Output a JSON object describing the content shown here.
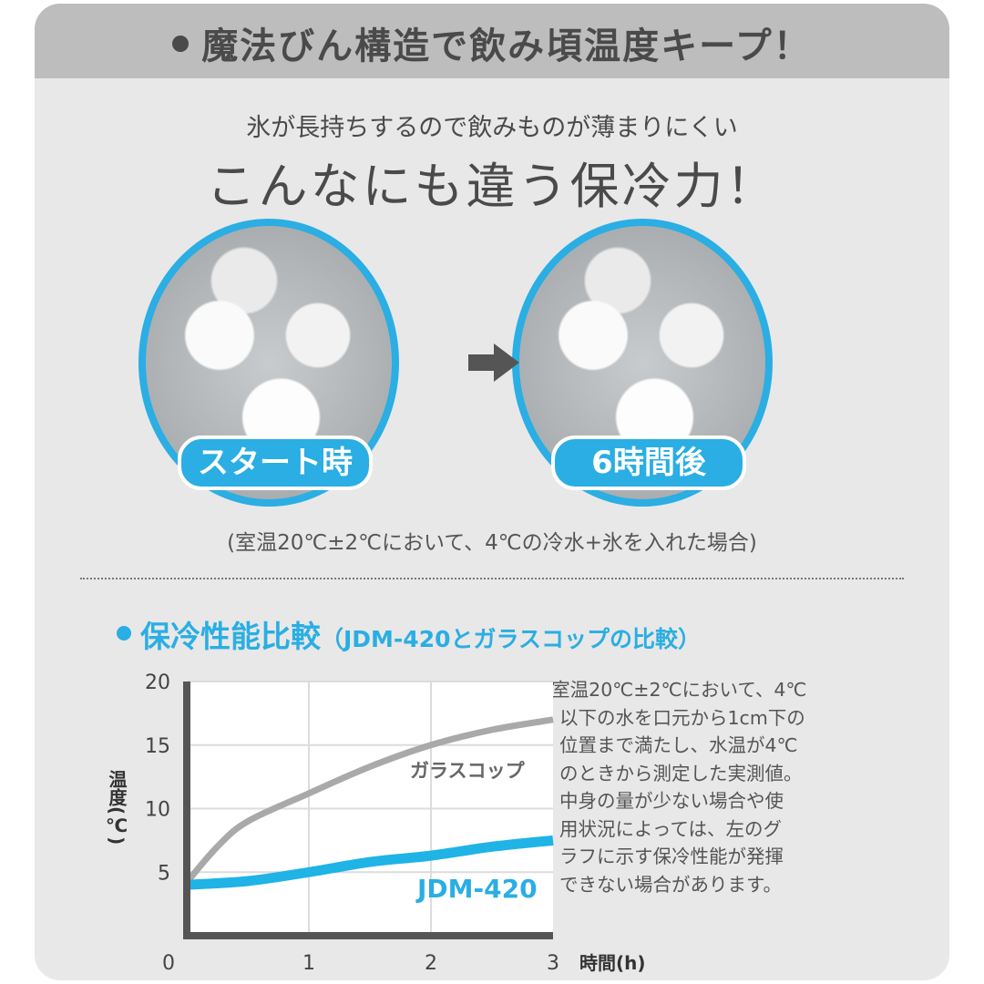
{
  "header": {
    "title": "魔法びん構造で飲み頃温度キープ！"
  },
  "intro": {
    "subtitle": "氷が長持ちするので飲みものが薄まりにくい",
    "headline": "こんなにも違う保冷力！"
  },
  "comparison": {
    "before_label": "スタート時",
    "after_label": "6時間後",
    "arrow_icon": "arrow-right",
    "condition_note": "(室温20℃±2℃において、4℃の冷水+氷を入れた場合)"
  },
  "section": {
    "title": "保冷性能比較",
    "subtitle": "（JDM-420とガラスコップの比較）"
  },
  "footnote": [
    "※室温20℃±2℃において、4℃",
    "以下の水を口元から1cm下の",
    "位置まで満たし、水温が4℃",
    "のときから測定した実測値。",
    "中身の量が少ない場合や使",
    "用状況によっては、左のグ",
    "ラフに示す保冷性能が発揮",
    "できない場合があります。"
  ],
  "colors": {
    "accent": "#2aaee3",
    "header_bg": "#bdbdbd",
    "panel_bg": "#e8e8e8",
    "glass_line": "#a9a9a9",
    "jdm_line": "#1fb3e6"
  },
  "chart_data": {
    "type": "line",
    "xlabel": "時間(h)",
    "ylabel": "温度(℃)",
    "xlim": [
      0,
      3
    ],
    "ylim": [
      0,
      20
    ],
    "x_ticks": [
      "0",
      "1",
      "2",
      "3"
    ],
    "y_ticks": [
      "5",
      "10",
      "15",
      "20"
    ],
    "grid": true,
    "series": [
      {
        "name": "ガラスコップ",
        "color": "#a9a9a9",
        "x": [
          0,
          0.25,
          0.5,
          1,
          1.5,
          2,
          2.5,
          3
        ],
        "y": [
          4.2,
          7.0,
          9.0,
          11.2,
          13.3,
          15.0,
          16.2,
          17.0
        ]
      },
      {
        "name": "JDM-420",
        "color": "#1fb3e6",
        "x": [
          0,
          0.5,
          1,
          1.5,
          2,
          2.5,
          3
        ],
        "y": [
          4.0,
          4.3,
          5.0,
          5.8,
          6.3,
          7.0,
          7.5
        ]
      }
    ]
  }
}
